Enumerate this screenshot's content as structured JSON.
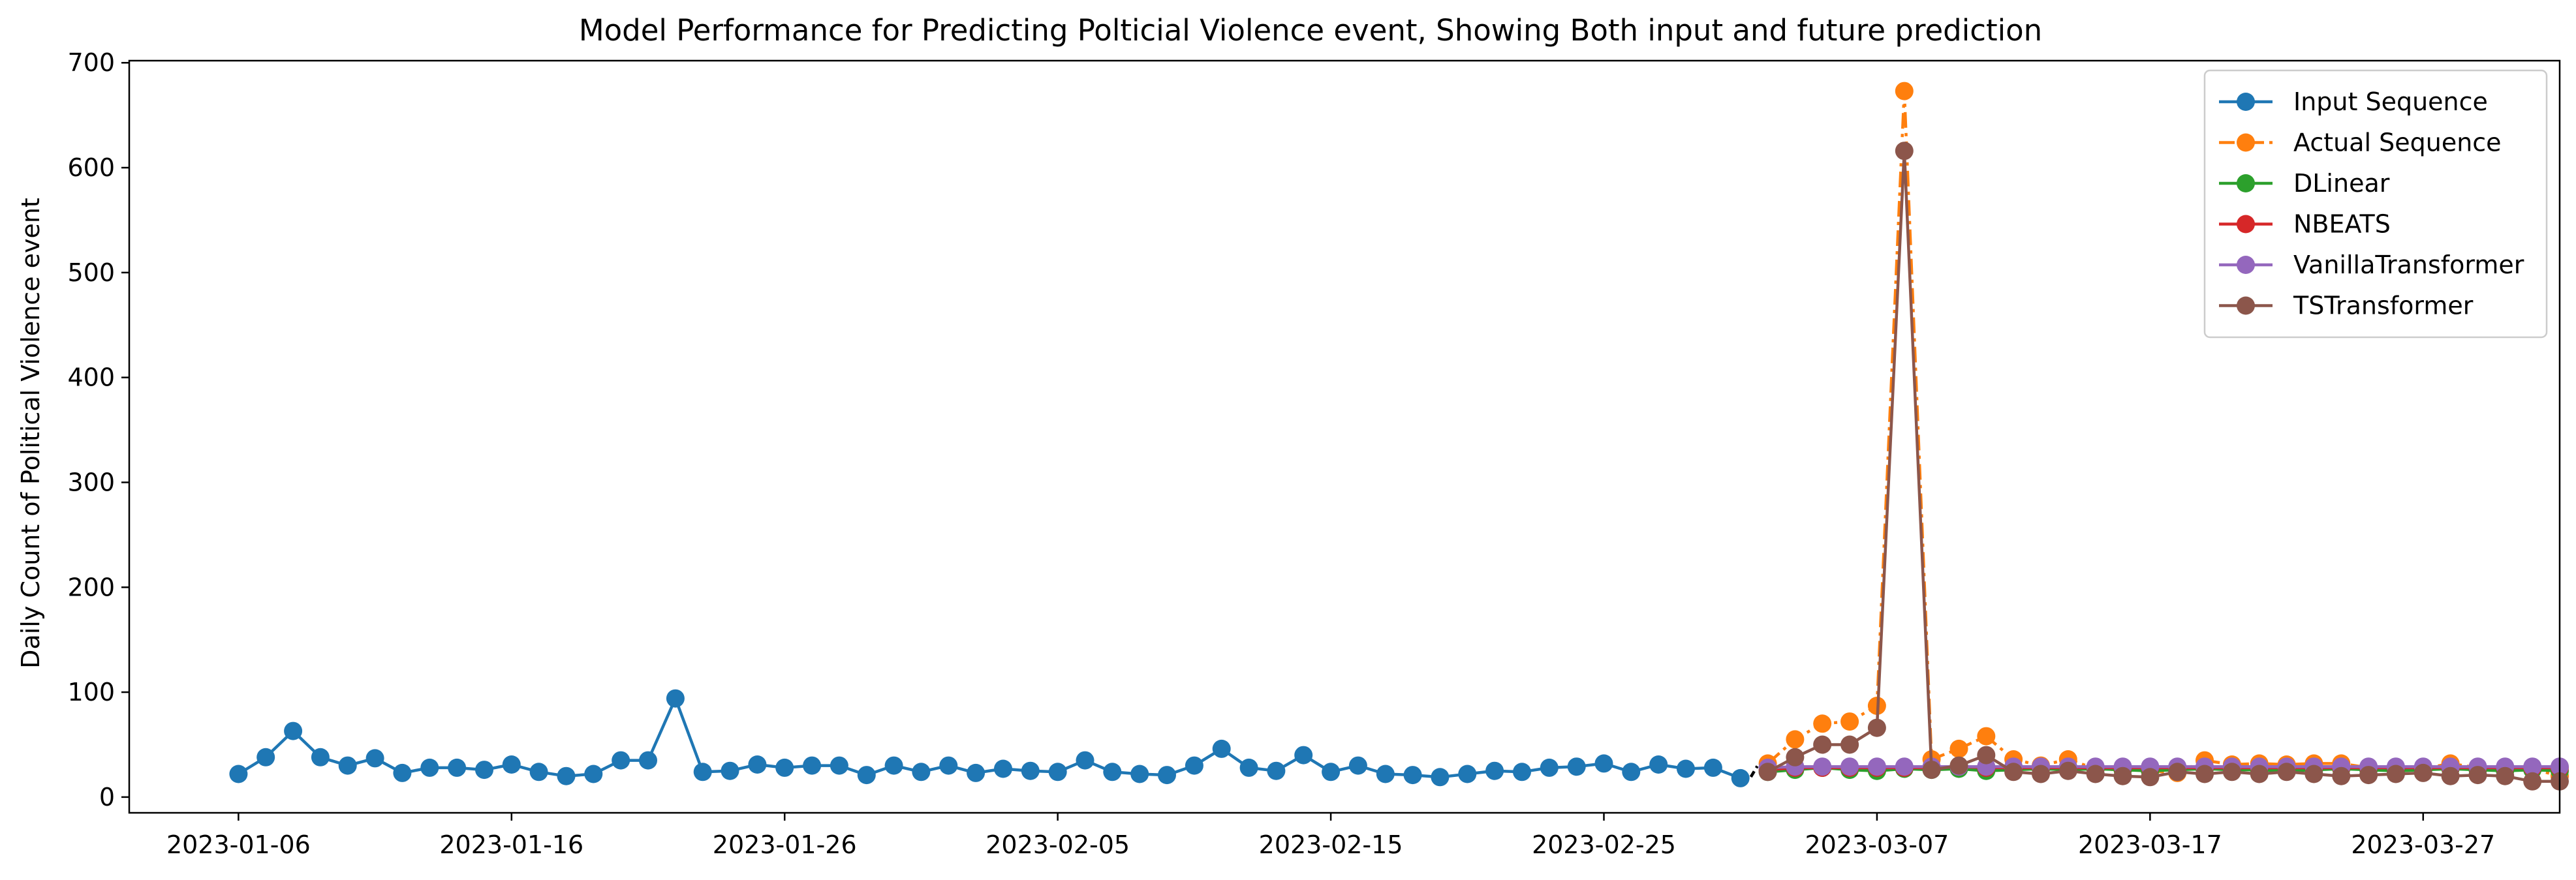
{
  "chart_data": {
    "type": "line",
    "title": "Model Performance for Predicting Polticial Violence event, Showing Both input and future prediction",
    "xlabel": "",
    "ylabel": "Daily Count of Political Violence event",
    "xlim": [
      "2023-01-02",
      "2023-04-01"
    ],
    "ylim": [
      -15,
      702
    ],
    "x_ticks": [
      "2023-01-06",
      "2023-01-16",
      "2023-01-26",
      "2023-02-05",
      "2023-02-15",
      "2023-02-25",
      "2023-03-07",
      "2023-03-17",
      "2023-03-27"
    ],
    "y_ticks": [
      0,
      100,
      200,
      300,
      400,
      500,
      600,
      700
    ],
    "grid": false,
    "legend_position": "top-right",
    "series": [
      {
        "name": "Input Sequence",
        "color": "#1f77b4",
        "linestyle": "solid",
        "start": "2023-01-06",
        "values": [
          22,
          38,
          63,
          38,
          30,
          37,
          23,
          28,
          28,
          26,
          31,
          24,
          20,
          22,
          35,
          35,
          94,
          24,
          25,
          31,
          28,
          30,
          30,
          21,
          30,
          24,
          30,
          23,
          27,
          25,
          24,
          35,
          24,
          22,
          21,
          30,
          46,
          28,
          25,
          40,
          24,
          30,
          22,
          21,
          19,
          22,
          25,
          24,
          28,
          29,
          32,
          24,
          31,
          27,
          28,
          18
        ]
      },
      {
        "name": "Actual Sequence",
        "color": "#ff7f0e",
        "linestyle": "dashdot",
        "start": "2023-03-03",
        "values": [
          32,
          55,
          70,
          72,
          87,
          673,
          36,
          46,
          58,
          36,
          30,
          36,
          27,
          26,
          25,
          23,
          35,
          31,
          32,
          31,
          32,
          32,
          28,
          25,
          27,
          32,
          28,
          27,
          27,
          20
        ]
      },
      {
        "name": "DLinear",
        "color": "#2ca02c",
        "linestyle": "solid",
        "start": "2023-03-03",
        "values": [
          24,
          26,
          28,
          26,
          25,
          27,
          26,
          27,
          25,
          26,
          27,
          26,
          27,
          26,
          25,
          26,
          27,
          26,
          26,
          25,
          26,
          27,
          26,
          25,
          26,
          27,
          26,
          25,
          26,
          25
        ]
      },
      {
        "name": "NBEATS",
        "color": "#d62728",
        "linestyle": "solid",
        "start": "2023-03-03",
        "values": [
          26,
          28,
          28,
          28,
          28,
          28,
          28,
          29,
          28,
          28,
          28,
          28,
          28,
          28,
          28,
          28,
          28,
          28,
          28,
          28,
          28,
          28,
          28,
          28,
          28,
          28,
          28,
          28,
          28,
          28
        ]
      },
      {
        "name": "VanillaTransformer",
        "color": "#9467bd",
        "linestyle": "solid",
        "start": "2023-03-03",
        "values": [
          28,
          29,
          29,
          29,
          29,
          29,
          29,
          29,
          29,
          29,
          29,
          29,
          29,
          29,
          29,
          29,
          29,
          29,
          29,
          29,
          29,
          29,
          29,
          29,
          29,
          29,
          29,
          29,
          29,
          29
        ]
      },
      {
        "name": "TSTransformer",
        "color": "#8c564b",
        "linestyle": "solid",
        "start": "2023-03-03",
        "values": [
          24,
          38,
          50,
          50,
          66,
          616,
          26,
          30,
          40,
          24,
          22,
          25,
          22,
          20,
          19,
          24,
          22,
          24,
          22,
          24,
          22,
          20,
          21,
          22,
          23,
          20,
          21,
          20,
          15,
          15
        ]
      }
    ]
  }
}
